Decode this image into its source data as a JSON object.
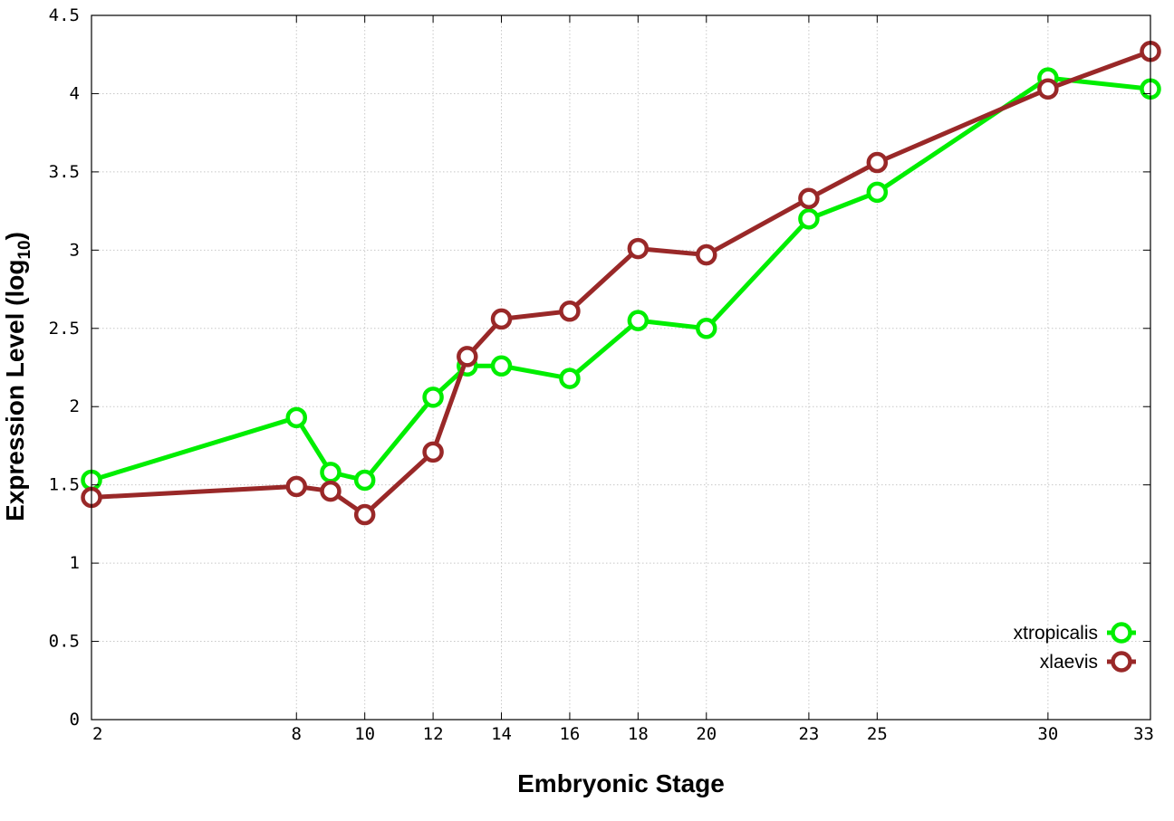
{
  "chart_data": {
    "type": "line",
    "title": "",
    "xlabel": "Embryonic Stage",
    "ylabel_main": "Expression Level (log",
    "ylabel_sub": "10",
    "ylabel_close": ")",
    "xlim": [
      2,
      33
    ],
    "ylim": [
      0,
      4.5
    ],
    "grid": true,
    "legend_position": "bottom-right",
    "x_ticks": [
      2,
      8,
      10,
      12,
      14,
      16,
      18,
      20,
      23,
      25,
      30,
      33
    ],
    "x_tick_labels": [
      "2",
      "8",
      "10",
      "12",
      "14",
      "16",
      "18",
      "20",
      "23",
      "25",
      "30",
      "33"
    ],
    "y_ticks": [
      0,
      0.5,
      1,
      1.5,
      2,
      2.5,
      3,
      3.5,
      4,
      4.5
    ],
    "y_tick_labels": [
      "0",
      "0.5",
      "1",
      "1.5",
      "2",
      "2.5",
      "3",
      "3.5",
      "4",
      "4.5"
    ],
    "series": [
      {
        "name": "xtropicalis",
        "color": "#00ee00",
        "x": [
          2,
          8,
          9,
          10,
          12,
          13,
          14,
          16,
          18,
          20,
          23,
          25,
          30,
          33
        ],
        "values": [
          1.53,
          1.93,
          1.58,
          1.53,
          2.06,
          2.26,
          2.26,
          2.18,
          2.55,
          2.5,
          3.2,
          3.37,
          4.1,
          4.03
        ]
      },
      {
        "name": "xlaevis",
        "color": "#992828",
        "x": [
          2,
          8,
          9,
          10,
          12,
          13,
          14,
          16,
          18,
          20,
          23,
          25,
          30,
          33
        ],
        "values": [
          1.42,
          1.49,
          1.46,
          1.31,
          1.71,
          2.32,
          2.56,
          2.61,
          3.01,
          2.97,
          3.33,
          3.56,
          4.03,
          4.27
        ]
      }
    ]
  }
}
